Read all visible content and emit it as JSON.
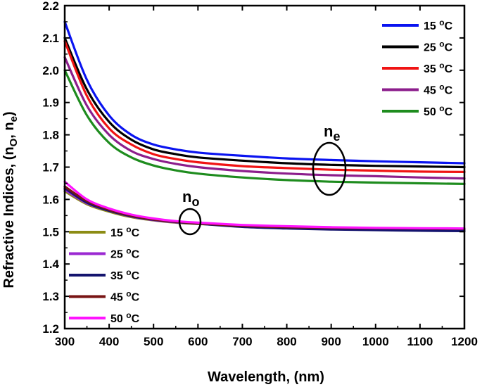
{
  "chart_data": {
    "type": "line",
    "xlabel": "Wavelength, (nm)",
    "ylabel_main": "Refractive Indices, (n",
    "ylabel_sub1": "O",
    "ylabel_mid": ", n",
    "ylabel_sub2": "e",
    "ylabel_end": ")",
    "xlim": [
      300,
      1200
    ],
    "ylim": [
      1.2,
      2.2
    ],
    "xticks": [
      300,
      400,
      500,
      600,
      700,
      800,
      900,
      1000,
      1100,
      1200
    ],
    "yticks": [
      "1.2",
      "1.3",
      "1.4",
      "1.5",
      "1.6",
      "1.7",
      "1.8",
      "1.9",
      "2.0",
      "2.1",
      "2.2"
    ],
    "grid": false,
    "x": [
      300,
      350,
      400,
      450,
      500,
      550,
      600,
      700,
      800,
      900,
      1000,
      1100,
      1200
    ],
    "ne_series": [
      {
        "name": "15 oC",
        "temp": "15",
        "color": "#0a14f0",
        "values": [
          2.15,
          1.97,
          1.86,
          1.8,
          1.77,
          1.755,
          1.745,
          1.735,
          1.727,
          1.722,
          1.718,
          1.715,
          1.712
        ]
      },
      {
        "name": "25 oC",
        "temp": "25",
        "color": "#000000",
        "values": [
          2.1,
          1.94,
          1.84,
          1.785,
          1.755,
          1.74,
          1.73,
          1.72,
          1.712,
          1.707,
          1.704,
          1.702,
          1.7
        ]
      },
      {
        "name": "35 oC",
        "temp": "35",
        "color": "#f01414",
        "values": [
          2.09,
          1.92,
          1.82,
          1.77,
          1.74,
          1.725,
          1.715,
          1.703,
          1.697,
          1.692,
          1.689,
          1.686,
          1.685
        ]
      },
      {
        "name": "45 oC",
        "temp": "45",
        "color": "#8c1e8c",
        "values": [
          2.04,
          1.89,
          1.8,
          1.75,
          1.725,
          1.71,
          1.7,
          1.688,
          1.68,
          1.675,
          1.672,
          1.668,
          1.665
        ]
      },
      {
        "name": "50 oC",
        "temp": "50",
        "color": "#1e8c1e",
        "values": [
          2.0,
          1.86,
          1.775,
          1.73,
          1.705,
          1.69,
          1.68,
          1.668,
          1.66,
          1.655,
          1.652,
          1.65,
          1.648
        ]
      }
    ],
    "no_series": [
      {
        "name": "15 oC",
        "temp": "15",
        "color": "#8c8c14",
        "values": [
          1.625,
          1.585,
          1.562,
          1.545,
          1.535,
          1.528,
          1.524,
          1.518,
          1.514,
          1.512,
          1.51,
          1.509,
          1.508
        ]
      },
      {
        "name": "25 oC",
        "temp": "25",
        "color": "#9b28d2",
        "values": [
          1.63,
          1.588,
          1.565,
          1.547,
          1.536,
          1.529,
          1.525,
          1.518,
          1.514,
          1.512,
          1.51,
          1.509,
          1.508
        ]
      },
      {
        "name": "35 oC",
        "temp": "35",
        "color": "#14146e",
        "values": [
          1.635,
          1.59,
          1.565,
          1.548,
          1.537,
          1.53,
          1.525,
          1.515,
          1.51,
          1.507,
          1.505,
          1.503,
          1.502
        ]
      },
      {
        "name": "45 oC",
        "temp": "45",
        "color": "#781414",
        "values": [
          1.64,
          1.595,
          1.568,
          1.55,
          1.538,
          1.531,
          1.526,
          1.518,
          1.514,
          1.512,
          1.511,
          1.51,
          1.509
        ]
      },
      {
        "name": "50 oC",
        "temp": "50",
        "color": "#ff14ff",
        "values": [
          1.655,
          1.6,
          1.572,
          1.553,
          1.541,
          1.533,
          1.528,
          1.521,
          1.517,
          1.514,
          1.512,
          1.511,
          1.51
        ]
      }
    ],
    "legend_ne_placement": "top-right",
    "legend_no_placement": "bottom-left",
    "annotations": {
      "ne_main": "n",
      "ne_sub": "e",
      "no_main": "n",
      "no_sub": "o"
    },
    "temp_unit_sup": "o",
    "temp_unit": "C"
  }
}
